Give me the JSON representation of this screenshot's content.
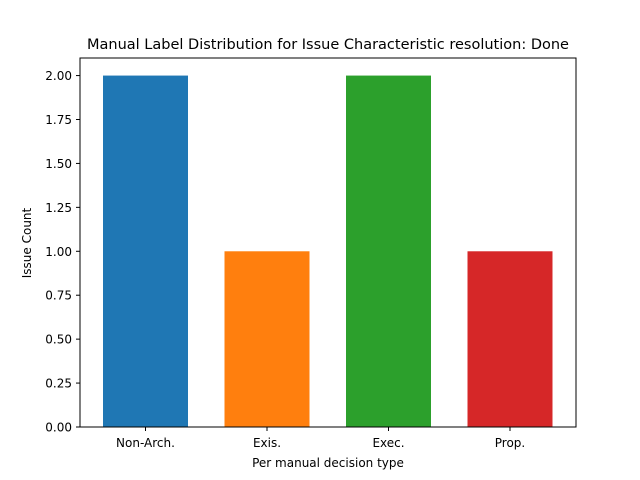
{
  "chart_data": {
    "type": "bar",
    "title": "Manual Label Distribution for Issue Characteristic resolution: Done",
    "xlabel": "Per manual decision type",
    "ylabel": "Issue Count",
    "categories": [
      "Non-Arch.",
      "Exis.",
      "Exec.",
      "Prop."
    ],
    "values": [
      2,
      1,
      2,
      1
    ],
    "colors": [
      "#1f77b4",
      "#ff7f0e",
      "#2ca02c",
      "#d62728"
    ],
    "ylim": [
      0,
      2.1
    ],
    "yticks": [
      "0.00",
      "0.25",
      "0.50",
      "0.75",
      "1.00",
      "1.25",
      "1.50",
      "1.75",
      "2.00"
    ],
    "grid": false,
    "legend": "none"
  }
}
